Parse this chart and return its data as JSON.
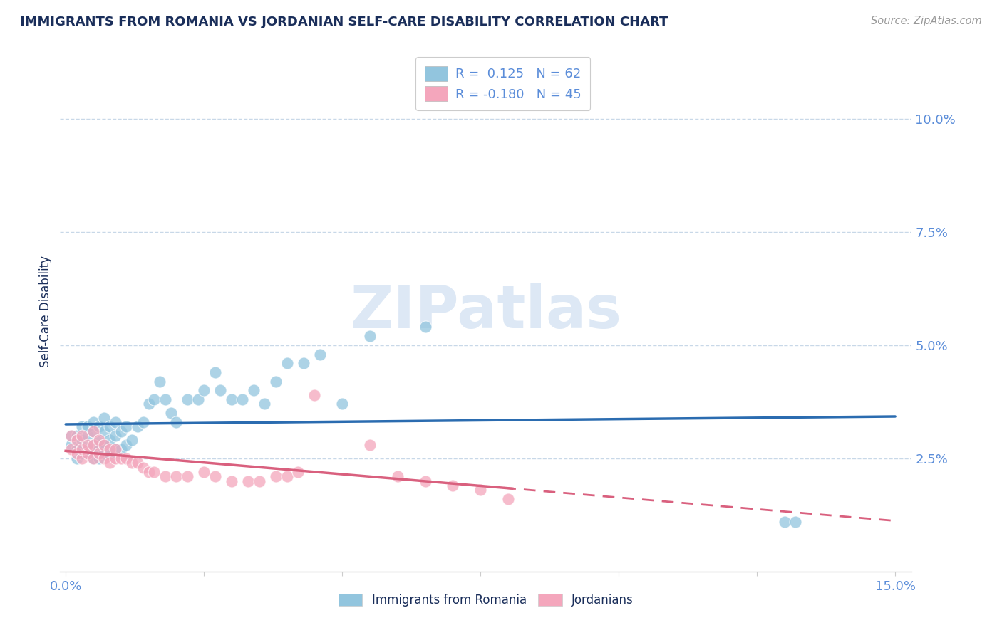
{
  "title": "IMMIGRANTS FROM ROMANIA VS JORDANIAN SELF-CARE DISABILITY CORRELATION CHART",
  "source": "Source: ZipAtlas.com",
  "ylabel": "Self-Care Disability",
  "r_romania": 0.125,
  "n_romania": 62,
  "r_jordanian": -0.18,
  "n_jordanian": 45,
  "blue_color": "#92c5de",
  "pink_color": "#f4a6bc",
  "blue_line_color": "#2b6cb0",
  "pink_line_color": "#d9607e",
  "grid_color": "#c8d8e8",
  "title_color": "#1a2e5a",
  "axis_color": "#5b8dd9",
  "watermark_color": "#dde8f5",
  "romania_scatter_x": [
    0.001,
    0.001,
    0.002,
    0.002,
    0.002,
    0.003,
    0.003,
    0.003,
    0.003,
    0.004,
    0.004,
    0.004,
    0.004,
    0.005,
    0.005,
    0.005,
    0.005,
    0.006,
    0.006,
    0.006,
    0.006,
    0.007,
    0.007,
    0.007,
    0.007,
    0.008,
    0.008,
    0.008,
    0.009,
    0.009,
    0.009,
    0.01,
    0.01,
    0.011,
    0.011,
    0.012,
    0.013,
    0.014,
    0.015,
    0.016,
    0.017,
    0.018,
    0.019,
    0.02,
    0.022,
    0.024,
    0.025,
    0.027,
    0.028,
    0.03,
    0.032,
    0.034,
    0.036,
    0.038,
    0.04,
    0.043,
    0.046,
    0.05,
    0.055,
    0.065,
    0.13,
    0.132
  ],
  "romania_scatter_y": [
    0.028,
    0.03,
    0.025,
    0.027,
    0.03,
    0.026,
    0.027,
    0.029,
    0.032,
    0.026,
    0.027,
    0.03,
    0.032,
    0.025,
    0.028,
    0.031,
    0.033,
    0.025,
    0.027,
    0.029,
    0.032,
    0.026,
    0.028,
    0.031,
    0.034,
    0.026,
    0.029,
    0.032,
    0.027,
    0.03,
    0.033,
    0.027,
    0.031,
    0.028,
    0.032,
    0.029,
    0.032,
    0.033,
    0.037,
    0.038,
    0.042,
    0.038,
    0.035,
    0.033,
    0.038,
    0.038,
    0.04,
    0.044,
    0.04,
    0.038,
    0.038,
    0.04,
    0.037,
    0.042,
    0.046,
    0.046,
    0.048,
    0.037,
    0.052,
    0.054,
    0.011,
    0.011
  ],
  "jordanian_scatter_x": [
    0.001,
    0.001,
    0.002,
    0.002,
    0.003,
    0.003,
    0.003,
    0.004,
    0.004,
    0.005,
    0.005,
    0.005,
    0.006,
    0.006,
    0.007,
    0.007,
    0.008,
    0.008,
    0.009,
    0.009,
    0.01,
    0.011,
    0.012,
    0.013,
    0.014,
    0.015,
    0.016,
    0.018,
    0.02,
    0.022,
    0.025,
    0.027,
    0.03,
    0.033,
    0.035,
    0.038,
    0.04,
    0.042,
    0.045,
    0.055,
    0.06,
    0.065,
    0.07,
    0.075,
    0.08
  ],
  "jordanian_scatter_y": [
    0.027,
    0.03,
    0.026,
    0.029,
    0.025,
    0.027,
    0.03,
    0.026,
    0.028,
    0.025,
    0.028,
    0.031,
    0.026,
    0.029,
    0.025,
    0.028,
    0.024,
    0.027,
    0.025,
    0.027,
    0.025,
    0.025,
    0.024,
    0.024,
    0.023,
    0.022,
    0.022,
    0.021,
    0.021,
    0.021,
    0.022,
    0.021,
    0.02,
    0.02,
    0.02,
    0.021,
    0.021,
    0.022,
    0.039,
    0.028,
    0.021,
    0.02,
    0.019,
    0.018,
    0.016
  ]
}
